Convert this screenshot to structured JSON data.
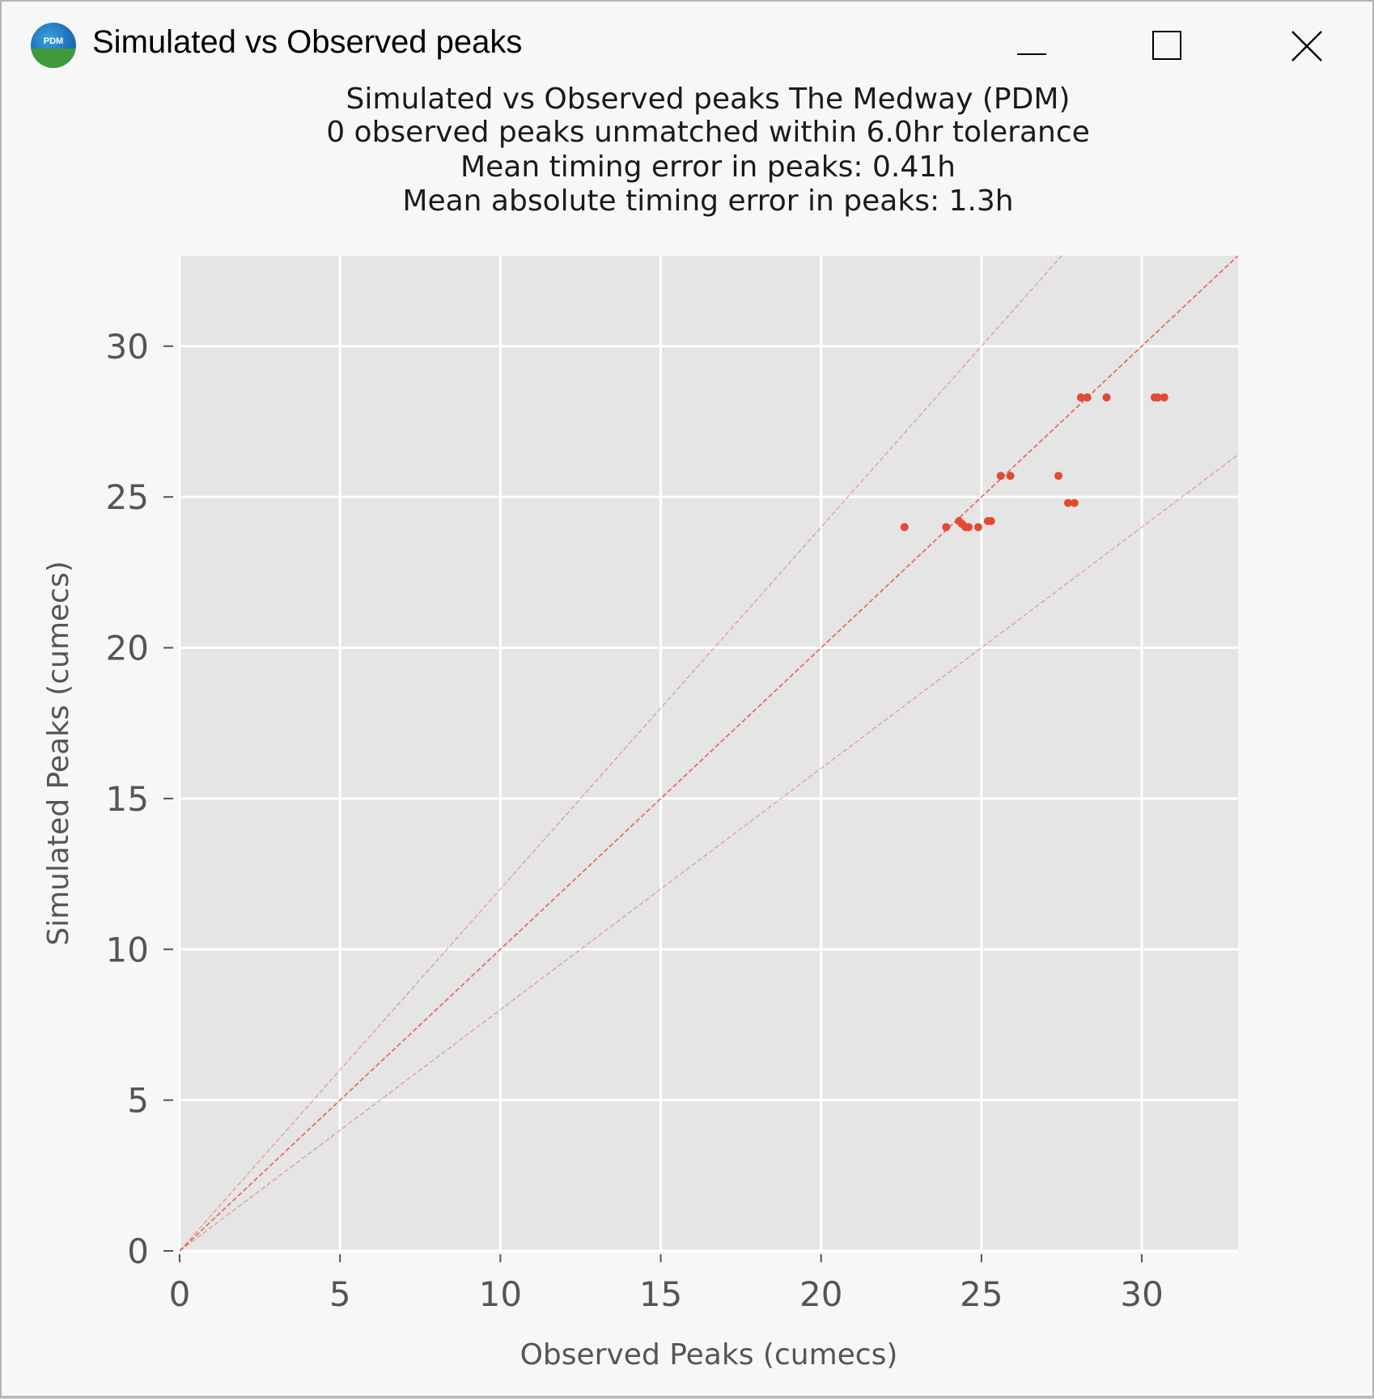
{
  "window": {
    "title": "Simulated vs Observed peaks",
    "icon_name": "pdm-app-icon",
    "icon_label": "PDM",
    "controls": {
      "minimize": "minimize-icon",
      "maximize": "maximize-icon",
      "close": "close-icon"
    }
  },
  "chart_data": {
    "type": "scatter",
    "title_lines": [
      "Simulated vs Observed peaks The Medway  (PDM)",
      "0 observed peaks unmatched within 6.0hr tolerance",
      "Mean timing error in peaks: 0.41h",
      "Mean absolute timing error in peaks: 1.3h"
    ],
    "xlabel": "Observed Peaks (cumecs)",
    "ylabel": "Simulated Peaks (cumecs)",
    "xlim": [
      0,
      33
    ],
    "ylim": [
      0,
      33
    ],
    "xticks": [
      "0",
      "5",
      "10",
      "15",
      "20",
      "25",
      "30"
    ],
    "yticks": [
      "0",
      "5",
      "10",
      "15",
      "20",
      "25",
      "30"
    ],
    "grid": true,
    "style": "ggplot",
    "point_color": "#e24a33",
    "line_color": "#e24a33",
    "reference_lines": [
      {
        "slope": 1.2
      },
      {
        "slope": 1.0
      },
      {
        "slope": 0.8
      }
    ],
    "points": [
      {
        "x": 22.6,
        "y": 24.0
      },
      {
        "x": 23.9,
        "y": 24.0
      },
      {
        "x": 24.3,
        "y": 24.2
      },
      {
        "x": 24.4,
        "y": 24.1
      },
      {
        "x": 24.5,
        "y": 24.0
      },
      {
        "x": 24.6,
        "y": 24.0
      },
      {
        "x": 24.9,
        "y": 24.0
      },
      {
        "x": 25.2,
        "y": 24.2
      },
      {
        "x": 25.3,
        "y": 24.2
      },
      {
        "x": 25.6,
        "y": 25.7
      },
      {
        "x": 25.9,
        "y": 25.7
      },
      {
        "x": 27.4,
        "y": 25.7
      },
      {
        "x": 27.7,
        "y": 24.8
      },
      {
        "x": 27.9,
        "y": 24.8
      },
      {
        "x": 28.1,
        "y": 28.3
      },
      {
        "x": 28.3,
        "y": 28.3
      },
      {
        "x": 28.9,
        "y": 28.3
      },
      {
        "x": 30.4,
        "y": 28.3
      },
      {
        "x": 30.5,
        "y": 28.3
      },
      {
        "x": 30.7,
        "y": 28.3
      }
    ]
  }
}
